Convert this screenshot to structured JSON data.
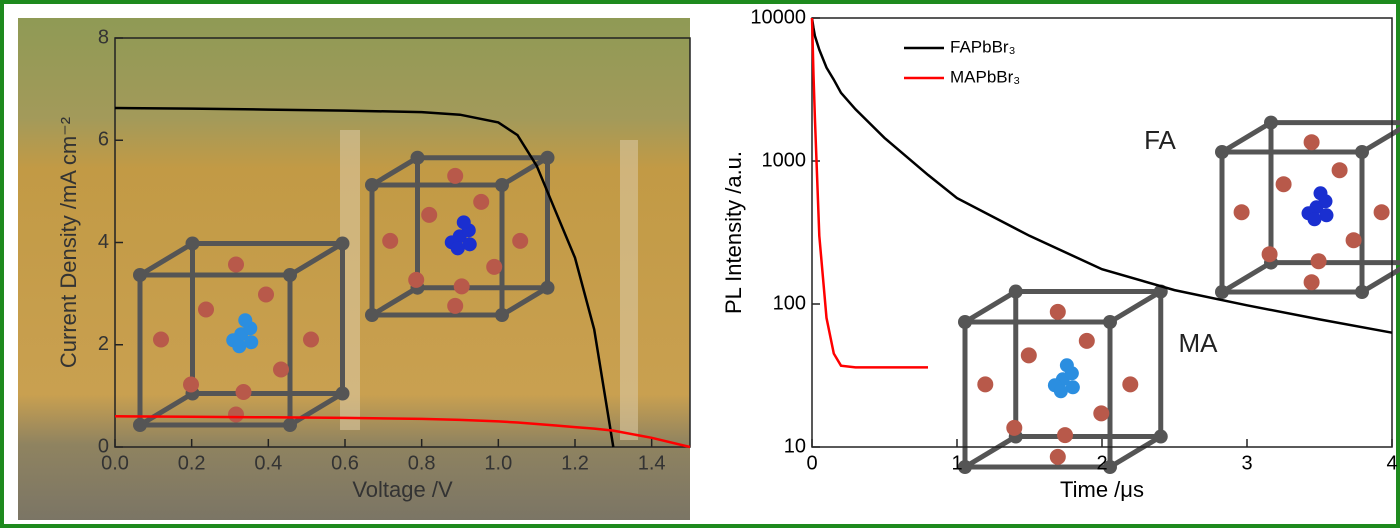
{
  "chart_data": [
    {
      "type": "line",
      "xlabel": "Voltage /V",
      "ylabel": "Current Density /mA cm⁻²",
      "x": [
        0,
        0.2,
        0.4,
        0.6,
        0.8,
        0.9,
        1.0,
        1.05,
        1.1,
        1.15,
        1.2,
        1.25,
        1.3,
        1.4,
        1.5
      ],
      "series": [
        {
          "color": "#000000",
          "values": [
            6.63,
            6.62,
            6.6,
            6.58,
            6.55,
            6.5,
            6.35,
            6.1,
            5.5,
            4.6,
            3.7,
            2.3,
            0,
            null,
            null
          ]
        },
        {
          "color": "#ff0000",
          "values": [
            0.6,
            0.59,
            0.58,
            0.57,
            0.55,
            0.53,
            0.5,
            0.48,
            0.45,
            0.42,
            0.39,
            0.36,
            0.32,
            0.18,
            0
          ]
        }
      ],
      "xlim": [
        0,
        1.5
      ],
      "xticks": [
        {
          "value": 0,
          "label": "0.0"
        },
        0.2,
        0.4,
        0.6,
        0.8,
        {
          "value": 1,
          "label": "1.0"
        },
        1.2,
        1.4
      ],
      "ylim": [
        0,
        8
      ],
      "yticks": [
        0,
        2,
        4,
        6,
        8
      ]
    },
    {
      "type": "line",
      "xlabel": "Time /μs",
      "ylabel": "PL Intensity /a.u.",
      "log_y": true,
      "annotations": [
        "FA",
        "MA"
      ],
      "x": [
        0,
        0.01,
        0.02,
        0.05,
        0.1,
        0.15,
        0.2,
        0.3,
        0.5,
        0.8,
        1,
        1.5,
        2,
        2.5,
        3,
        3.5,
        4
      ],
      "series": [
        {
          "name": "FAPbBr₃",
          "color": "#000000",
          "values": [
            10000,
            8500,
            7500,
            6000,
            4500,
            3700,
            3000,
            2300,
            1450,
            800,
            550,
            300,
            175,
            125,
            98,
            78,
            63
          ]
        },
        {
          "name": "MAPbBr₃",
          "color": "#ff0000",
          "values": [
            10000,
            4000,
            2000,
            300,
            80,
            45,
            37,
            36,
            36,
            36,
            null,
            null,
            null,
            null,
            null,
            null,
            null
          ]
        }
      ],
      "xlim": [
        0,
        4
      ],
      "xticks": [
        0,
        1,
        2,
        3,
        4
      ],
      "ylim": [
        10,
        10000
      ],
      "yticks": [
        10,
        100,
        1000,
        10000
      ]
    }
  ]
}
